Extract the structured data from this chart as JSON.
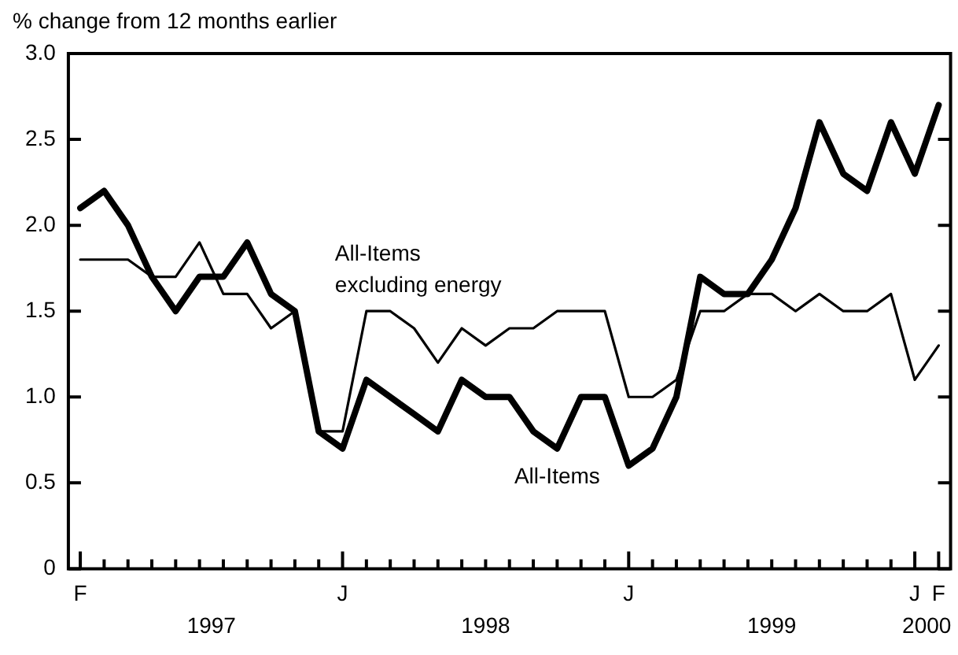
{
  "chart_data": {
    "type": "line",
    "ylabel": "% change from 12 months earlier",
    "categories": [
      "F",
      null,
      null,
      null,
      null,
      null,
      null,
      null,
      null,
      null,
      null,
      "J",
      null,
      null,
      null,
      null,
      null,
      null,
      null,
      null,
      null,
      null,
      null,
      "J",
      null,
      null,
      null,
      null,
      null,
      null,
      null,
      null,
      null,
      null,
      null,
      "J",
      "F"
    ],
    "series": [
      {
        "name": "All-Items",
        "color": "#000000",
        "values": [
          2.1,
          2.2,
          2.0,
          1.7,
          1.5,
          1.7,
          1.7,
          1.9,
          1.6,
          1.5,
          0.8,
          0.7,
          1.1,
          1.0,
          0.9,
          0.8,
          1.1,
          1.0,
          1.0,
          0.8,
          0.7,
          1.0,
          1.0,
          0.6,
          0.7,
          1.0,
          1.7,
          1.6,
          1.6,
          1.8,
          2.1,
          2.6,
          2.3,
          2.2,
          2.6,
          2.3,
          2.7
        ]
      },
      {
        "name": "All-Items excluding energy",
        "color": "#000000",
        "values": [
          1.8,
          1.8,
          1.8,
          1.7,
          1.7,
          1.9,
          1.6,
          1.6,
          1.4,
          1.5,
          0.8,
          0.8,
          1.5,
          1.5,
          1.4,
          1.2,
          1.4,
          1.3,
          1.4,
          1.4,
          1.5,
          1.5,
          1.5,
          1.0,
          1.0,
          1.1,
          1.5,
          1.5,
          1.6,
          1.6,
          1.5,
          1.6,
          1.5,
          1.5,
          1.6,
          1.1,
          1.3
        ]
      }
    ],
    "ylim": [
      0,
      3.0
    ],
    "yticks": [
      {
        "value": 0,
        "label": "0"
      },
      {
        "value": 0.5,
        "label": "0.5"
      },
      {
        "value": 1.0,
        "label": "1.0"
      },
      {
        "value": 1.5,
        "label": "1.5"
      },
      {
        "value": 2.0,
        "label": "2.0"
      },
      {
        "value": 2.5,
        "label": "2.5"
      },
      {
        "value": 3.0,
        "label": "3.0"
      }
    ],
    "annotations": [
      "1997",
      "1998",
      "1999",
      "2000"
    ],
    "legend": false,
    "grid": false,
    "marker": "none",
    "line_style": "solid"
  }
}
